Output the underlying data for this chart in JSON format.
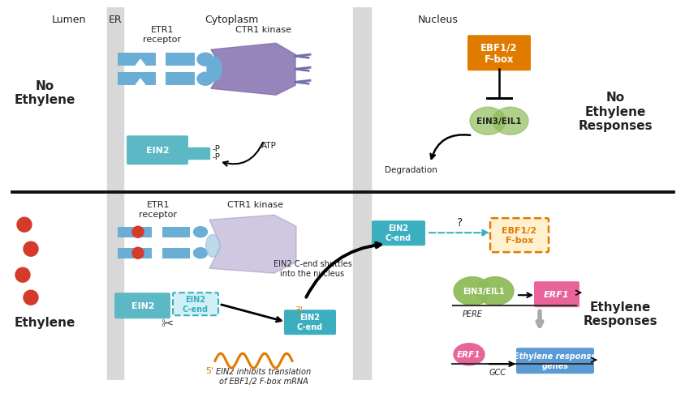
{
  "bg_color": "#ffffff",
  "er_color": "#d8d8d8",
  "blue_receptor": "#6aaed6",
  "blue_ein2": "#5bb8c4",
  "purple_ctr1": "#8470b0",
  "orange_ebf": "#e07b00",
  "orange_ebf_light": "#fff0d0",
  "green_ein3": "#8fbc5a",
  "pink_erf1": "#e8649a",
  "red_ethylene": "#d63a2a",
  "teal_c_end": "#3bafc0",
  "blue_response": "#5b9bd5",
  "gray_arrow": "#aaaaaa",
  "text_dark": "#222222",
  "orange_mrna": "#e07b00",
  "labels": {
    "lumen": "Lumen",
    "er": "ER",
    "cytoplasm": "Cytoplasm",
    "nucleus": "Nucleus",
    "etr1": "ETR1\nreceptor",
    "ctr1": "CTR1 kinase",
    "ein2": "EIN2",
    "ein2_cend": "EIN2\nC-end",
    "ebf": "EBF1/2\nF-box",
    "ein3": "EIN3/EIL1",
    "degradation": "Degradation",
    "no_ethylene_title": "No\nEthylene",
    "no_responses": "No\nEthylene\nResponses",
    "ethylene_title": "Ethylene",
    "ethylene_responses": "Ethylene\nResponses",
    "erf1": "ERF1",
    "pere": "PERE",
    "gcc": "GCC",
    "shuttle": "EIN2 C-end shuttles\ninto the nucleus",
    "inhibits": "EIN2 inhibits translation\nof EBF1/2 F-box mRNA",
    "ethylene_genes": "Ethylene response\ngenes",
    "atp": "ATP",
    "question": "?"
  }
}
